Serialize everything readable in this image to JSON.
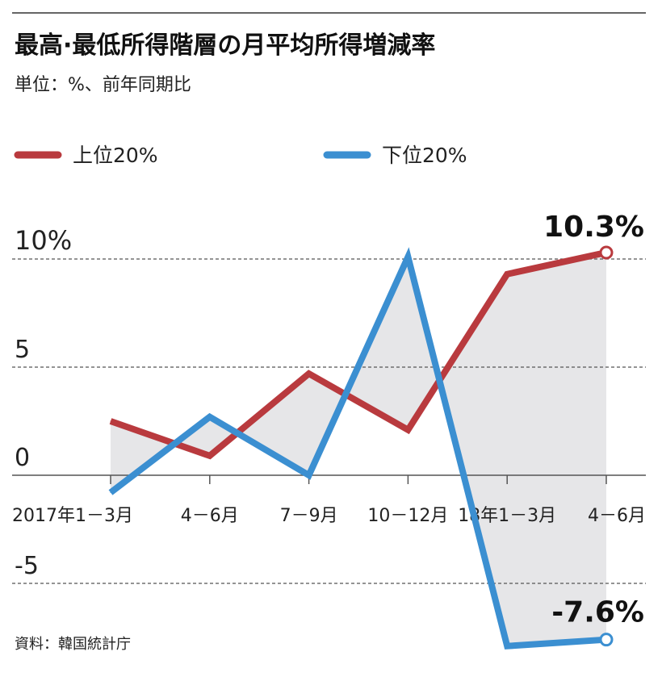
{
  "chart_data": {
    "type": "line",
    "title": "最高·最低所得階層の月平均所得増減率",
    "subtitle": "単位：%、前年同期比",
    "source": "資料：韓国統計庁",
    "categories": [
      "2017年1－3月",
      "4－6月",
      "7－9月",
      "10－12月",
      "18年1－3月",
      "4－6月"
    ],
    "series": [
      {
        "name": "上位20%",
        "color": "#b93a3e",
        "values": [
          2.5,
          0.9,
          4.7,
          2.1,
          9.3,
          10.3
        ]
      },
      {
        "name": "下位20%",
        "color": "#3b8fd1",
        "values": [
          -0.8,
          2.7,
          0.0,
          10.1,
          -7.9,
          -7.6
        ]
      }
    ],
    "yticks": [
      {
        "value": 10,
        "label": "10%"
      },
      {
        "value": 5,
        "label": "5"
      },
      {
        "value": 0,
        "label": "0"
      },
      {
        "value": -5,
        "label": "-5"
      }
    ],
    "ylim": [
      -8.5,
      11
    ],
    "annotations": [
      {
        "series": 0,
        "label": "10.3%"
      },
      {
        "series": 1,
        "label": "-7.6%"
      }
    ],
    "fill_color": "#e6e6e8",
    "legend": "top"
  }
}
